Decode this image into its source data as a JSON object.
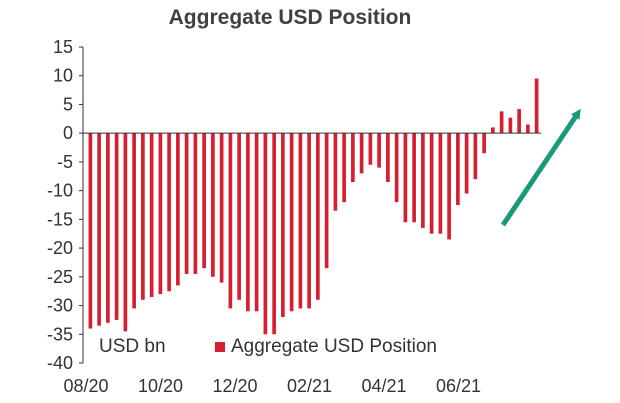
{
  "colors": {
    "bar": "#d62030",
    "arrow": "#1a9a7a",
    "axis": "#333333"
  },
  "chart_data": {
    "type": "bar",
    "title": "Aggregate USD Position",
    "unit_label": "USD bn",
    "series": [
      {
        "name": "Aggregate USD Position",
        "values": [
          -34,
          -33.5,
          -33,
          -32.5,
          -34.5,
          -30.5,
          -29,
          -28.5,
          -28,
          -27.5,
          -26.5,
          -24.5,
          -24.5,
          -23.5,
          -25,
          -26,
          -30.5,
          -29,
          -31,
          -31,
          -35,
          -35,
          -32,
          -31,
          -30.5,
          -30.5,
          -29,
          -23.5,
          -13.5,
          -12,
          -8.5,
          -7,
          -5.5,
          -6,
          -8.5,
          -12,
          -15.5,
          -15.5,
          -16.5,
          -17.5,
          -17.5,
          -18.5,
          -12.5,
          -10.5,
          -8,
          -3.5,
          1,
          3.8,
          2.7,
          4.2,
          1.5,
          9.5
        ]
      }
    ],
    "x_tick_labels": [
      "08/20",
      "10/20",
      "12/20",
      "02/21",
      "04/21",
      "06/21"
    ],
    "y_ticks": [
      15,
      10,
      5,
      0,
      -5,
      -10,
      -15,
      -20,
      -25,
      -30,
      -35,
      -40
    ],
    "ylim": [
      -40,
      15
    ],
    "legend_position": "bottom",
    "annotations": [
      "upward green arrow"
    ]
  }
}
